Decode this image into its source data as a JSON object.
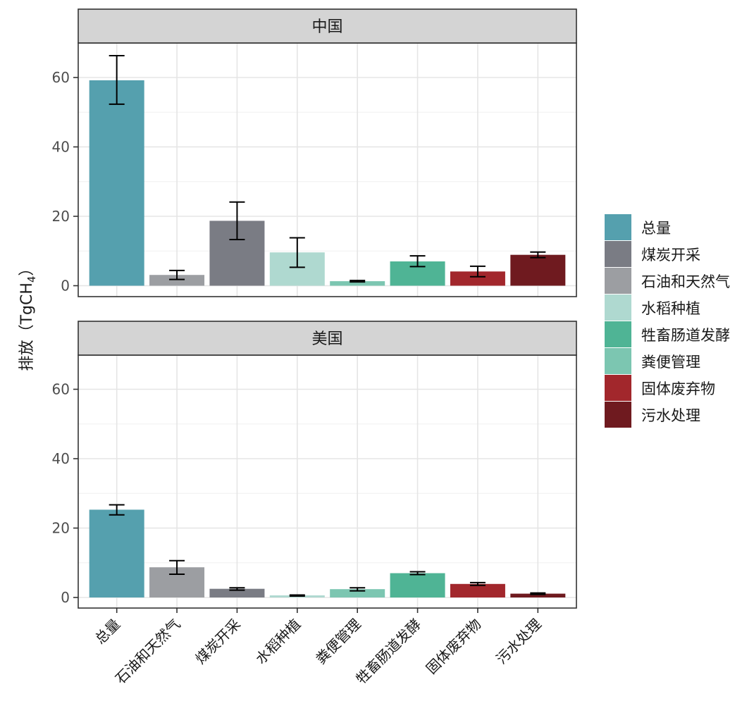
{
  "chart_data": {
    "type": "bar",
    "ylabel": "排放（TgCH",
    "ylabel_subscript": "4",
    "ylabel_close": "）",
    "ylim": [
      0,
      70
    ],
    "yticks": [
      "0",
      "20",
      "40",
      "60"
    ],
    "ytick_values": [
      0,
      20,
      40,
      60
    ],
    "colors": {
      "总量": "#55a0ae",
      "煤炭开采": "#7a7c84",
      "石油和天然气": "#9c9ea2",
      "水稻种植": "#afd9d0",
      "牲畜肠道发酵": "#4fb495",
      "粪便管理": "#7cc6b1",
      "固体废弃物": "#a2272c",
      "污水处理": "#6f1a1f"
    },
    "legend": {
      "position": "right",
      "entries": [
        "总量",
        "煤炭开采",
        "石油和天然气",
        "水稻种植",
        "牲畜肠道发酵",
        "粪便管理",
        "固体废弃物",
        "污水处理"
      ]
    },
    "x_categories": [
      "总量",
      "石油和天然气",
      "煤炭开采",
      "水稻种植",
      "粪便管理",
      "牲畜肠道发酵",
      "固体废弃物",
      "污水处理"
    ],
    "panels": [
      {
        "title": "中国",
        "bars": [
          {
            "category": "总量",
            "value": 59.2,
            "err_low": 52.3,
            "err_high": 66.3
          },
          {
            "category": "石油和天然气",
            "value": 3.1,
            "err_low": 1.8,
            "err_high": 4.4
          },
          {
            "category": "煤炭开采",
            "value": 18.7,
            "err_low": 13.3,
            "err_high": 24.1
          },
          {
            "category": "水稻种植",
            "value": 9.6,
            "err_low": 5.3,
            "err_high": 13.8
          },
          {
            "category": "粪便管理",
            "value": 1.3,
            "err_low": 1.1,
            "err_high": 1.5
          },
          {
            "category": "牲畜肠道发酵",
            "value": 7.0,
            "err_low": 5.5,
            "err_high": 8.6
          },
          {
            "category": "固体废弃物",
            "value": 4.1,
            "err_low": 2.6,
            "err_high": 5.6
          },
          {
            "category": "污水处理",
            "value": 8.9,
            "err_low": 8.1,
            "err_high": 9.7
          }
        ]
      },
      {
        "title": "美国",
        "bars": [
          {
            "category": "总量",
            "value": 25.3,
            "err_low": 23.8,
            "err_high": 26.7
          },
          {
            "category": "石油和天然气",
            "value": 8.7,
            "err_low": 6.7,
            "err_high": 10.6
          },
          {
            "category": "煤炭开采",
            "value": 2.5,
            "err_low": 2.1,
            "err_high": 2.8
          },
          {
            "category": "水稻种植",
            "value": 0.6,
            "err_low": 0.4,
            "err_high": 0.7
          },
          {
            "category": "粪便管理",
            "value": 2.4,
            "err_low": 1.9,
            "err_high": 2.8
          },
          {
            "category": "牲畜肠道发酵",
            "value": 7.0,
            "err_low": 6.6,
            "err_high": 7.4
          },
          {
            "category": "固体废弃物",
            "value": 3.9,
            "err_low": 3.5,
            "err_high": 4.3
          },
          {
            "category": "污水处理",
            "value": 1.1,
            "err_low": 0.9,
            "err_high": 1.3
          }
        ]
      }
    ]
  }
}
